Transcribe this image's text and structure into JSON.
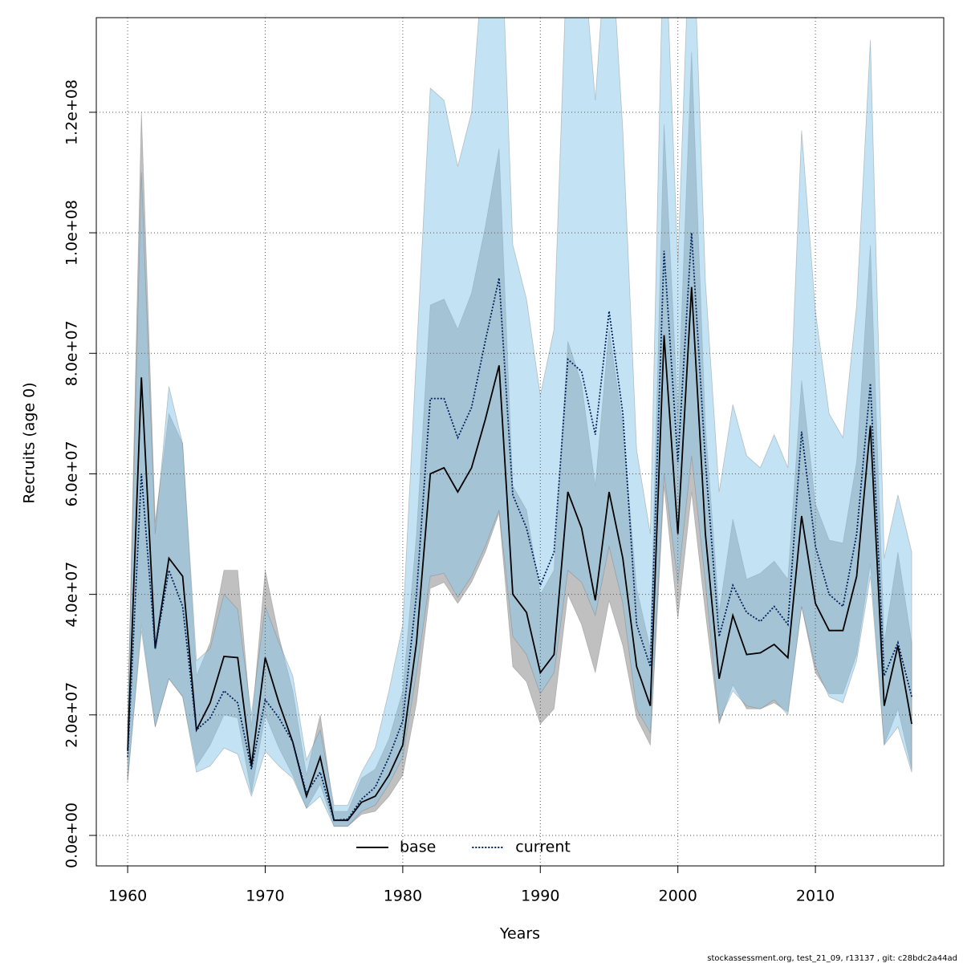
{
  "chart_data": {
    "type": "line",
    "xlabel": "Years",
    "ylabel": "Recruits (age 0)",
    "footnote": "stockassessment.org, test_21_09, r13137 , git: c28bdc2a44ad",
    "x": [
      1960,
      1961,
      1962,
      1963,
      1964,
      1965,
      1966,
      1967,
      1968,
      1969,
      1970,
      1971,
      1972,
      1973,
      1974,
      1975,
      1976,
      1977,
      1978,
      1979,
      1980,
      1981,
      1982,
      1983,
      1984,
      1985,
      1986,
      1987,
      1988,
      1989,
      1990,
      1991,
      1992,
      1993,
      1994,
      1995,
      1996,
      1997,
      1998,
      1999,
      2000,
      2001,
      2002,
      2003,
      2004,
      2005,
      2006,
      2007,
      2008,
      2009,
      2010,
      2011,
      2012,
      2013,
      2014,
      2015,
      2016,
      2017
    ],
    "xlim": [
      1957.72,
      2019.33
    ],
    "xticks": [
      1960,
      1970,
      1980,
      1990,
      2000,
      2010
    ],
    "ylim": [
      -5060000.0,
      135700000.0
    ],
    "yticks": [
      {
        "value": 0,
        "label": "0.0e+00"
      },
      {
        "value": 20000000,
        "label": "2.0e+07"
      },
      {
        "value": 40000000,
        "label": "4.0e+07"
      },
      {
        "value": 60000000,
        "label": "6.0e+07"
      },
      {
        "value": 80000000,
        "label": "8.0e+07"
      },
      {
        "value": 100000000,
        "label": "1.0e+08"
      },
      {
        "value": 120000000,
        "label": "1.2e+08"
      }
    ],
    "grid": true,
    "legend": "bottom",
    "series": [
      {
        "name": "base",
        "color": "#000000",
        "linestyle": "solid",
        "band_color": "rgba(90,90,90,0.38)",
        "values": [
          14000000.0,
          76000000.0,
          31000000.0,
          46000000.0,
          43000000.0,
          17500000.0,
          22000000.0,
          29700000.0,
          29500000.0,
          11500000.0,
          29500000.0,
          22000000.0,
          15500000.0,
          6500000.0,
          13000000.0,
          2500000.0,
          2500000.0,
          5500000.0,
          6500000.0,
          10000000.0,
          15000000.0,
          32000000.0,
          60000000.0,
          61000000.0,
          57000000.0,
          61000000.0,
          69000000.0,
          78000000.0,
          40000000.0,
          37000000.0,
          27000000.0,
          30000000.0,
          57000000.0,
          51000000.0,
          39000000.0,
          57000000.0,
          46000000.0,
          28000000.0,
          21500000.0,
          83000000.0,
          50000000.0,
          91000000.0,
          50000000.0,
          26000000.0,
          36500000.0,
          30000000.0,
          30300000.0,
          31700000.0,
          29500000.0,
          53000000.0,
          38500000.0,
          34000000.0,
          34000000.0,
          43000000.0,
          68000000.0,
          21500000.0,
          31500000.0,
          18500000.0
        ],
        "lower": [
          9000000.0,
          35000000.0,
          18000000.0,
          26000000.0,
          23000000.0,
          11500000.0,
          15000000.0,
          20000000.0,
          19500000.0,
          7000000.0,
          20000000.0,
          14500000.0,
          10000000.0,
          4500000.0,
          8500000.0,
          1500000.0,
          1500000.0,
          3500000.0,
          4000000.0,
          6500000.0,
          10000000.0,
          22000000.0,
          41000000.0,
          42000000.0,
          38500000.0,
          42000000.0,
          47000000.0,
          53500000.0,
          28000000.0,
          25500000.0,
          18500000.0,
          21000000.0,
          40000000.0,
          35000000.0,
          27000000.0,
          39000000.0,
          31500000.0,
          19500000.0,
          15000000.0,
          58000000.0,
          36000000.0,
          57000000.0,
          37000000.0,
          18500000.0,
          25000000.0,
          21000000.0,
          21000000.0,
          22000000.0,
          20500000.0,
          38000000.0,
          27000000.0,
          23500000.0,
          23500000.0,
          30000000.0,
          45000000.0,
          15000000.0,
          21000000.0,
          11000000.0
        ],
        "upper": [
          19000000.0,
          120000000.0,
          52000000.0,
          70000000.0,
          65000000.0,
          26500000.0,
          32000000.0,
          44000000.0,
          44000000.0,
          18000000.0,
          44000000.0,
          33000000.0,
          24000000.0,
          10000000.0,
          20000000.0,
          4000000.0,
          4000000.0,
          9500000.0,
          11000000.0,
          16000000.0,
          24000000.0,
          50000000.0,
          88000000.0,
          89000000.0,
          84000000.0,
          90000000.0,
          101000000.0,
          114000000.0,
          58000000.0,
          54000000.0,
          40000000.0,
          44000000.0,
          82000000.0,
          75000000.0,
          58000000.0,
          84000000.0,
          68000000.0,
          41000000.0,
          31000000.0,
          118000000.0,
          70000000.0,
          130000000.0,
          68000000.0,
          37000000.0,
          52500000.0,
          42500000.0,
          43500000.0,
          45500000.0,
          42500000.0,
          75500000.0,
          55000000.0,
          49000000.0,
          48500000.0,
          62000000.0,
          98000000.0,
          32000000.0,
          47000000.0,
          32000000.0
        ]
      },
      {
        "name": "current",
        "color": "#00205b",
        "linestyle": "dotted",
        "band_color": "rgba(135,200,235,0.5)",
        "values": [
          13000000.0,
          60000000.0,
          31000000.0,
          44000000.0,
          38000000.0,
          17500000.0,
          19500000.0,
          24000000.0,
          22000000.0,
          11000000.0,
          22500000.0,
          19500000.0,
          15500000.0,
          7000000.0,
          10500000.0,
          2500000.0,
          2700000.0,
          6000000.0,
          8000000.0,
          13000000.0,
          19000000.0,
          40000000.0,
          72500000.0,
          72500000.0,
          66000000.0,
          71000000.0,
          82000000.0,
          92500000.0,
          56500000.0,
          51000000.0,
          41500000.0,
          47000000.0,
          79000000.0,
          77000000.0,
          66500000.0,
          87000000.0,
          70000000.0,
          35000000.0,
          28000000.0,
          97000000.0,
          62000000.0,
          100000000.0,
          62000000.0,
          33000000.0,
          41500000.0,
          37000000.0,
          35500000.0,
          38000000.0,
          35000000.0,
          67000000.0,
          48000000.0,
          40000000.0,
          38000000.0,
          50000000.0,
          75000000.0,
          26500000.0,
          32000000.0,
          23000000.0
        ],
        "lower": [
          9000000.0,
          34000000.0,
          18000000.0,
          26000000.0,
          23000000.0,
          10500000.0,
          11500000.0,
          14500000.0,
          13500000.0,
          6500000.0,
          14000000.0,
          11500000.0,
          9500000.0,
          4500000.0,
          6500000.0,
          1500000.0,
          1500000.0,
          4000000.0,
          5000000.0,
          8500000.0,
          13000000.0,
          27000000.0,
          43000000.0,
          43500000.0,
          39500000.0,
          43000000.0,
          48000000.0,
          54000000.0,
          33000000.0,
          30000000.0,
          23500000.0,
          27000000.0,
          44000000.0,
          42000000.0,
          36500000.0,
          48000000.0,
          38500000.0,
          21000000.0,
          17000000.0,
          60000000.0,
          42000000.0,
          63000000.0,
          42000000.0,
          19000000.0,
          24000000.0,
          21500000.0,
          21000000.0,
          22500000.0,
          20000000.0,
          38000000.0,
          28000000.0,
          23000000.0,
          22000000.0,
          29000000.0,
          43000000.0,
          15000000.0,
          18000000.0,
          10500000.0
        ],
        "upper": [
          19000000.0,
          110000000.0,
          50000000.0,
          74500000.0,
          65000000.0,
          29000000.0,
          31000000.0,
          40000000.0,
          37500000.0,
          20000000.0,
          38000000.0,
          32000000.0,
          26500000.0,
          12500000.0,
          17500000.0,
          5000000.0,
          5000000.0,
          10500000.0,
          14500000.0,
          24000000.0,
          35000000.0,
          80000000.0,
          124000000.0,
          122000000.0,
          111000000.0,
          120000000.0,
          150000000.0,
          160000000.0,
          98000000.0,
          89000000.0,
          73000000.0,
          84000000.0,
          150000000.0,
          150000000.0,
          122000000.0,
          155000000.0,
          117000000.0,
          64000000.0,
          50000000.0,
          155000000.0,
          95000000.0,
          160000000.0,
          92000000.0,
          57000000.0,
          71500000.0,
          63000000.0,
          61000000.0,
          66500000.0,
          61000000.0,
          117000000.0,
          87000000.0,
          70000000.0,
          66000000.0,
          88000000.0,
          132000000.0,
          46000000.0,
          56500000.0,
          47000000.0
        ]
      }
    ]
  }
}
